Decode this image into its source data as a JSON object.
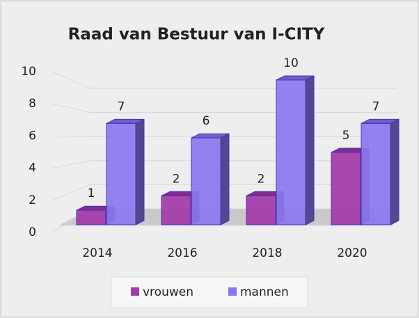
{
  "chart_data": {
    "type": "bar3d",
    "title": "Raad van Bestuur van I-CITY",
    "categories": [
      "2014",
      "2016",
      "2018",
      "2020"
    ],
    "series": [
      {
        "name": "vrouwen",
        "color": "#a23aa8",
        "values": [
          1,
          2,
          2,
          5
        ]
      },
      {
        "name": "mannen",
        "color": "#8a78f0",
        "values": [
          7,
          6,
          10,
          7
        ]
      }
    ],
    "ylim": [
      0,
      10
    ],
    "yticks": [
      0,
      2,
      4,
      6,
      8,
      10
    ],
    "grid": true,
    "legend": "bottom"
  }
}
